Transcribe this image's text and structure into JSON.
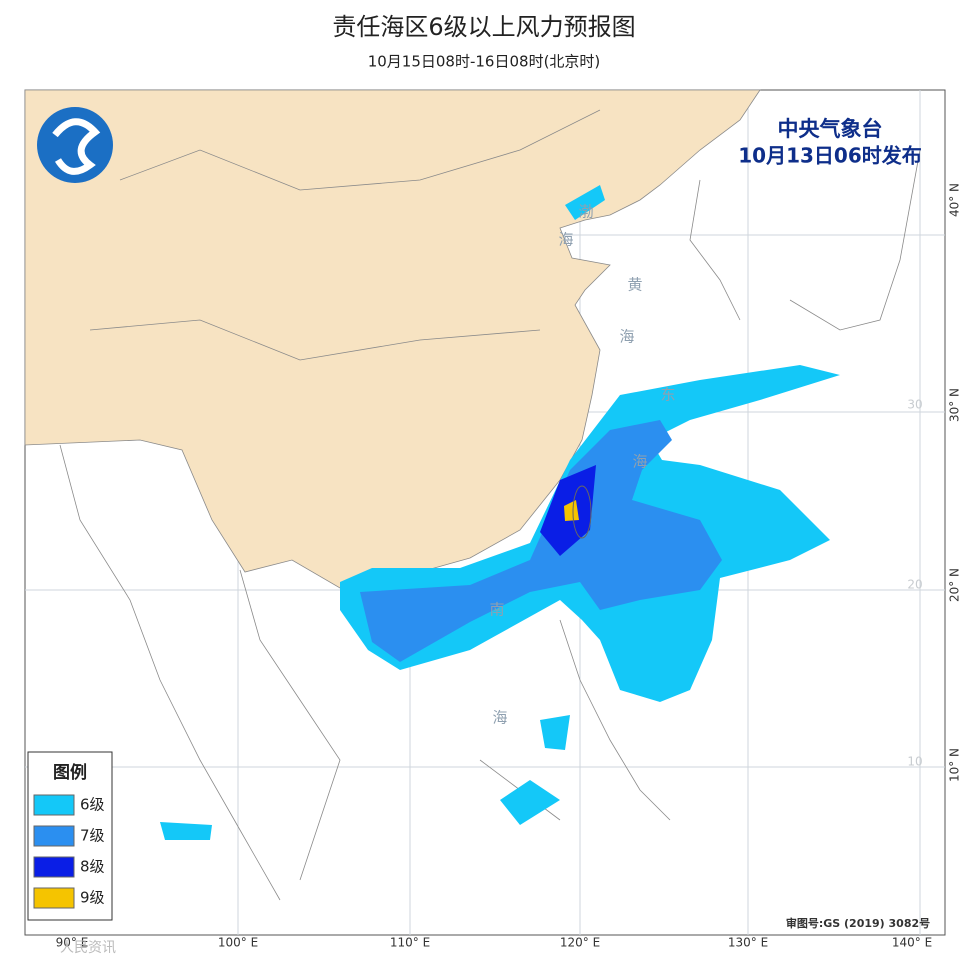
{
  "title": "责任海区6级以上风力预报图",
  "subtitle": "10月15日08时-16日08时(北京时)",
  "issuer": {
    "name": "中央气象台",
    "time": "10月13日06时发布"
  },
  "legend": {
    "title": "图例",
    "items": [
      {
        "label": "6级",
        "color": "#14c8f8"
      },
      {
        "label": "7级",
        "color": "#2b8ff0"
      },
      {
        "label": "8级",
        "color": "#0a1ee6"
      },
      {
        "label": "9级",
        "color": "#f5c400"
      }
    ]
  },
  "sea_labels": [
    "渤",
    "海",
    "黄",
    "海",
    "东",
    "海",
    "南",
    "海"
  ],
  "lon_labels": [
    "90° E",
    "100° E",
    "110° E",
    "120° E",
    "130° E",
    "140° E"
  ],
  "lat_labels": [
    "40° N",
    "30° N",
    "20° N",
    "10° N"
  ],
  "grid_labels": [
    "30",
    "20",
    "10"
  ],
  "approval": "审图号:GS (2019) 3082号",
  "watermark": "人民资讯"
}
